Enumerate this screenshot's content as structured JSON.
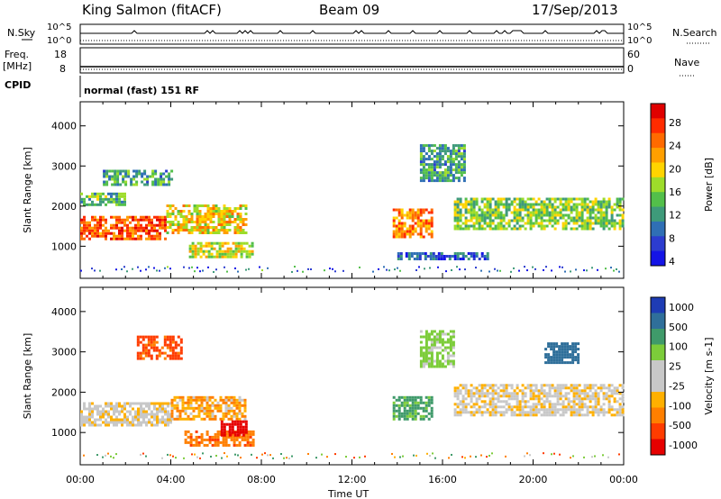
{
  "header": {
    "station": "King Salmon (fitACF)",
    "beam": "Beam 09",
    "date": "17/Sep/2013"
  },
  "top_panels": {
    "nsky_label": "N.Sky",
    "nsearch_label": "N.Search",
    "scale_top": "10^5",
    "scale_bottom": "10^0",
    "freq_label": "Freq.",
    "freq_unit": "[MHz]",
    "freq_ticks": [
      "18",
      "8"
    ],
    "nave_label": "Nave",
    "nave_ticks": [
      "60",
      "0"
    ],
    "cpid_label": "CPID",
    "cpid_text": "normal (fast) 151 RF"
  },
  "chart_data": [
    {
      "type": "heatmap",
      "title": "",
      "xlabel": "Time UT",
      "ylabel": "Slant Range [km]",
      "xlim": [
        "00:00",
        "24:00"
      ],
      "ylim": [
        200,
        4600
      ],
      "x_ticks": [
        "00:00",
        "04:00",
        "08:00",
        "12:00",
        "16:00",
        "20:00",
        "00:00"
      ],
      "y_ticks": [
        1000,
        2000,
        3000,
        4000
      ],
      "colorbar": {
        "label": "Power [dB]",
        "ticks": [
          "28",
          "24",
          "20",
          "16",
          "12",
          "8",
          "4"
        ],
        "range": [
          0,
          30
        ],
        "colors": [
          "#1414e6",
          "#2c3ccf",
          "#2f6fb5",
          "#3e9a7a",
          "#53bf4a",
          "#9ddc2a",
          "#ffd400",
          "#ff9f00",
          "#ff6a00",
          "#ff2b00",
          "#e00000"
        ]
      },
      "echo_regions": [
        {
          "t0": 0.0,
          "t1": 3.8,
          "r0": 1150,
          "r1": 1700,
          "level": 24
        },
        {
          "t0": 3.8,
          "t1": 7.3,
          "r0": 1300,
          "r1": 2000,
          "level": 18
        },
        {
          "t0": 0.0,
          "t1": 2.0,
          "r0": 2000,
          "r1": 2300,
          "level": 12
        },
        {
          "t0": 1.0,
          "t1": 4.0,
          "r0": 2500,
          "r1": 2900,
          "level": 10
        },
        {
          "t0": 4.8,
          "t1": 7.6,
          "r0": 700,
          "r1": 1100,
          "level": 16
        },
        {
          "t0": 13.8,
          "t1": 15.5,
          "r0": 1200,
          "r1": 1900,
          "level": 22
        },
        {
          "t0": 15.0,
          "t1": 17.0,
          "r0": 2600,
          "r1": 3500,
          "level": 10
        },
        {
          "t0": 16.5,
          "t1": 24.0,
          "r0": 1400,
          "r1": 2200,
          "level": 14
        },
        {
          "t0": 14.0,
          "t1": 18.0,
          "r0": 650,
          "r1": 850,
          "level": 6
        }
      ]
    },
    {
      "type": "heatmap",
      "title": "",
      "xlabel": "Time UT",
      "ylabel": "Slant Range [km]",
      "xlim": [
        "00:00",
        "24:00"
      ],
      "ylim": [
        200,
        4600
      ],
      "x_ticks": [
        "00:00",
        "04:00",
        "08:00",
        "12:00",
        "16:00",
        "20:00",
        "00:00"
      ],
      "y_ticks": [
        1000,
        2000,
        3000,
        4000
      ],
      "colorbar": {
        "label": "Velocity [m s-1]",
        "ticks": [
          "1000",
          "500",
          "100",
          "25",
          "-25",
          "-100",
          "-500",
          "-1000"
        ],
        "colors": [
          "#1e3cb4",
          "#2f6f9a",
          "#3f9a6a",
          "#7ccc3a",
          "#c8c8c8",
          "#c8c8c8",
          "#ffb000",
          "#ff7f00",
          "#ff3c00",
          "#e60000"
        ]
      },
      "echo_regions": [
        {
          "t0": 0.0,
          "t1": 4.0,
          "r0": 1150,
          "r1": 1700,
          "velocity": 0
        },
        {
          "t0": 4.0,
          "t1": 7.3,
          "r0": 1300,
          "r1": 1900,
          "velocity": -80
        },
        {
          "t0": 4.6,
          "t1": 7.6,
          "r0": 650,
          "r1": 1050,
          "velocity": -200
        },
        {
          "t0": 6.2,
          "t1": 7.3,
          "r0": 900,
          "r1": 1300,
          "velocity": -700
        },
        {
          "t0": 2.5,
          "t1": 4.5,
          "r0": 2800,
          "r1": 3400,
          "velocity": -300
        },
        {
          "t0": 13.8,
          "t1": 15.5,
          "r0": 1300,
          "r1": 1900,
          "velocity": 300
        },
        {
          "t0": 15.0,
          "t1": 16.5,
          "r0": 2600,
          "r1": 3500,
          "velocity": 150
        },
        {
          "t0": 16.5,
          "t1": 24.0,
          "r0": 1400,
          "r1": 2200,
          "velocity": 0
        },
        {
          "t0": 20.5,
          "t1": 22.0,
          "r0": 2700,
          "r1": 3200,
          "velocity": 700
        }
      ]
    }
  ]
}
